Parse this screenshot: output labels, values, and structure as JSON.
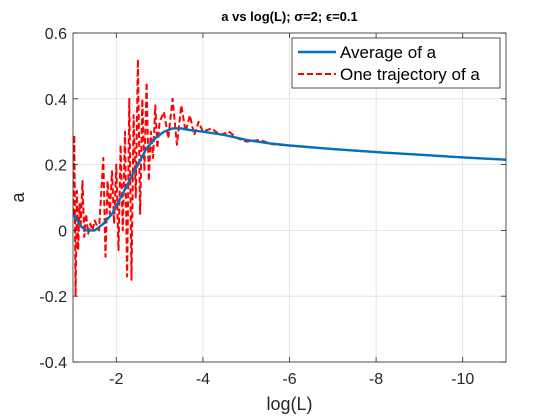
{
  "chart_data": {
    "type": "line",
    "title": "a vs log(L); σ=2; ϵ=0.1",
    "xlabel": "log(L)",
    "ylabel": "a",
    "xlim": [
      -1,
      -11
    ],
    "ylim": [
      -0.4,
      0.6
    ],
    "x_reversed": true,
    "x_ticks": [
      -2,
      -4,
      -6,
      -8,
      -10
    ],
    "x_tick_labels": [
      "-2",
      "-4",
      "-6",
      "-8",
      "-10"
    ],
    "y_ticks": [
      -0.4,
      -0.2,
      0,
      0.2,
      0.4,
      0.6
    ],
    "y_tick_labels": [
      "-0.4",
      "-0.2",
      "0",
      "0.2",
      "0.4",
      "0.6"
    ],
    "grid": true,
    "legend_position": "top-right",
    "series": [
      {
        "name": "Average of a",
        "color": "#0072BD",
        "style": "solid",
        "x": [
          -1.0,
          -1.1,
          -1.2,
          -1.3,
          -1.5,
          -1.7,
          -1.9,
          -2.1,
          -2.3,
          -2.5,
          -2.7,
          -2.9,
          -3.1,
          -3.3,
          -3.5,
          -3.7,
          -4.0,
          -4.5,
          -5.0,
          -5.5,
          -6.0,
          -7.0,
          -8.0,
          -9.0,
          -10.0,
          -11.0
        ],
        "y": [
          0.05,
          0.03,
          0.01,
          0.0,
          0.0,
          0.02,
          0.05,
          0.1,
          0.15,
          0.2,
          0.25,
          0.28,
          0.3,
          0.31,
          0.31,
          0.305,
          0.3,
          0.29,
          0.275,
          0.265,
          0.258,
          0.247,
          0.238,
          0.23,
          0.222,
          0.215
        ]
      },
      {
        "name": "One trajectory of a",
        "color": "#FF0000",
        "style": "dashed",
        "x": [
          -1.0,
          -1.03,
          -1.06,
          -1.09,
          -1.12,
          -1.15,
          -1.18,
          -1.22,
          -1.26,
          -1.3,
          -1.35,
          -1.4,
          -1.45,
          -1.5,
          -1.6,
          -1.7,
          -1.75,
          -1.8,
          -1.85,
          -1.9,
          -1.95,
          -2.0,
          -2.05,
          -2.1,
          -2.15,
          -2.2,
          -2.25,
          -2.3,
          -2.35,
          -2.4,
          -2.45,
          -2.5,
          -2.55,
          -2.6,
          -2.65,
          -2.7,
          -2.75,
          -2.8,
          -2.85,
          -2.9,
          -2.95,
          -3.0,
          -3.1,
          -3.2,
          -3.3,
          -3.4,
          -3.5,
          -3.6,
          -3.7,
          -3.8,
          -3.9,
          -4.0,
          -4.2,
          -4.4,
          -4.6,
          -4.8,
          -5.0,
          -5.3,
          -5.6,
          -6.0,
          -7.0,
          -8.0,
          -9.0,
          -10.0,
          -11.0
        ],
        "y": [
          0.05,
          0.29,
          -0.2,
          0.12,
          -0.06,
          0.08,
          0.02,
          0.15,
          -0.02,
          0.05,
          -0.01,
          0.02,
          0.0,
          0.03,
          0.0,
          0.22,
          -0.08,
          0.15,
          0.05,
          0.18,
          0.02,
          0.2,
          -0.06,
          0.26,
          0.0,
          0.3,
          -0.14,
          0.4,
          -0.15,
          0.35,
          0.1,
          0.52,
          0.05,
          0.4,
          0.18,
          0.45,
          0.15,
          0.3,
          0.22,
          0.38,
          0.25,
          0.33,
          0.36,
          0.28,
          0.4,
          0.26,
          0.38,
          0.3,
          0.35,
          0.29,
          0.33,
          0.3,
          0.31,
          0.29,
          0.3,
          0.28,
          0.27,
          0.275,
          0.262,
          0.258,
          0.247,
          0.238,
          0.23,
          0.222,
          0.215
        ]
      }
    ]
  }
}
